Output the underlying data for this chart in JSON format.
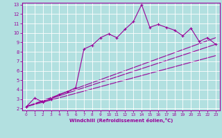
{
  "xlabel": "Windchill (Refroidissement éolien,°C)",
  "bg_color": "#b2e0e0",
  "line_color": "#990099",
  "xlim": [
    -0.5,
    23.5
  ],
  "ylim": [
    1.8,
    13.2
  ],
  "xticks": [
    0,
    1,
    2,
    3,
    4,
    5,
    6,
    7,
    8,
    9,
    10,
    11,
    12,
    13,
    14,
    15,
    16,
    17,
    18,
    19,
    20,
    21,
    22,
    23
  ],
  "yticks": [
    2,
    3,
    4,
    5,
    6,
    7,
    8,
    9,
    10,
    11,
    12,
    13
  ],
  "scatter_x": [
    0,
    1,
    2,
    3,
    4,
    5,
    6,
    7,
    8,
    9,
    10,
    11,
    12,
    13,
    14,
    15,
    16,
    17,
    18,
    19,
    20,
    21,
    22,
    23
  ],
  "scatter_y": [
    2.2,
    3.1,
    2.7,
    3.0,
    3.5,
    3.8,
    4.2,
    8.3,
    8.7,
    9.5,
    9.9,
    9.5,
    10.4,
    11.2,
    13.0,
    10.6,
    10.9,
    10.6,
    10.3,
    9.7,
    10.5,
    9.1,
    9.5,
    8.8
  ],
  "line1_x": [
    0,
    23
  ],
  "line1_y": [
    2.2,
    9.5
  ],
  "line2_x": [
    0,
    23
  ],
  "line2_y": [
    2.2,
    8.8
  ],
  "line3_x": [
    0,
    23
  ],
  "line3_y": [
    2.2,
    7.6
  ]
}
